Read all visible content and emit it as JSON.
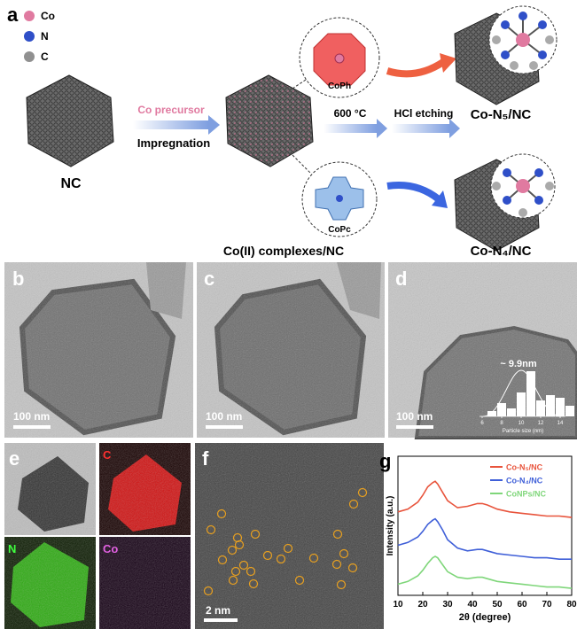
{
  "panel_a": {
    "label": "a",
    "legend": [
      "Co",
      "N",
      "C"
    ],
    "nc_label": "NC",
    "step1_top": "Co precursor",
    "step1_bottom": "Impregnation",
    "intermediate_label": "Co(II) complexes/NC",
    "complex_top": "CoPh",
    "complex_bottom": "CoPc",
    "step2": "600 °C",
    "step3": "HCl etching",
    "product_top": "Co-N₅/NC",
    "product_bottom": "Co-N₄/NC"
  },
  "panel_b": {
    "label": "b",
    "scale_bar": "100 nm"
  },
  "panel_c": {
    "label": "c",
    "scale_bar": "100 nm"
  },
  "panel_d": {
    "label": "d",
    "scale_bar": "100 nm",
    "inset": {
      "type": "histogram",
      "annotation": "~ 9.9nm",
      "xlabel": "Particle size (nm)",
      "xlim": [
        5,
        15
      ],
      "xticks": [
        6,
        8,
        10,
        12,
        14
      ],
      "ylim": [
        0,
        20
      ],
      "bins": [
        6.5,
        7.5,
        8.5,
        9.5,
        10.5,
        11.5,
        12.5,
        13.5,
        14.5,
        15.5
      ],
      "counts": [
        2,
        5,
        3,
        9,
        17,
        6,
        8,
        7,
        4
      ]
    }
  },
  "panel_e": {
    "label": "e",
    "maps": [
      "C",
      "N",
      "Co"
    ]
  },
  "panel_f": {
    "label": "f",
    "scale_bar": "2 nm"
  },
  "chart_data": {
    "type": "line",
    "panel_label": "g",
    "xlabel": "2θ (degree)",
    "ylabel": "Intensity (a.u.)",
    "xlim": [
      10,
      80
    ],
    "xticks": [
      10,
      20,
      30,
      40,
      50,
      60,
      70,
      80
    ],
    "ylim": [
      0,
      100
    ],
    "legend": "upper right",
    "x": [
      10,
      14,
      18,
      20,
      22,
      24,
      25,
      26,
      28,
      30,
      34,
      38,
      42,
      44,
      46,
      50,
      55,
      60,
      65,
      70,
      75,
      80
    ],
    "series": [
      {
        "name": "Co-N₅/NC",
        "color": "#e8543c",
        "values": [
          60,
          62,
          67,
          72,
          78,
          81,
          82,
          80,
          74,
          68,
          63,
          64,
          66,
          66,
          65,
          62,
          60,
          59,
          58,
          57,
          57,
          56
        ]
      },
      {
        "name": "Co-N₄/NC",
        "color": "#3f5fd8",
        "values": [
          36,
          38,
          42,
          46,
          51,
          54,
          55,
          53,
          47,
          40,
          34,
          32,
          33,
          33,
          32,
          30,
          29,
          28,
          27,
          27,
          26,
          26
        ]
      },
      {
        "name": "CoNPs/NC",
        "color": "#7fd67a",
        "values": [
          8,
          10,
          14,
          18,
          23,
          27,
          28,
          27,
          22,
          17,
          13,
          12,
          13,
          13,
          12,
          10,
          9,
          8,
          7,
          6,
          6,
          5
        ]
      }
    ]
  }
}
